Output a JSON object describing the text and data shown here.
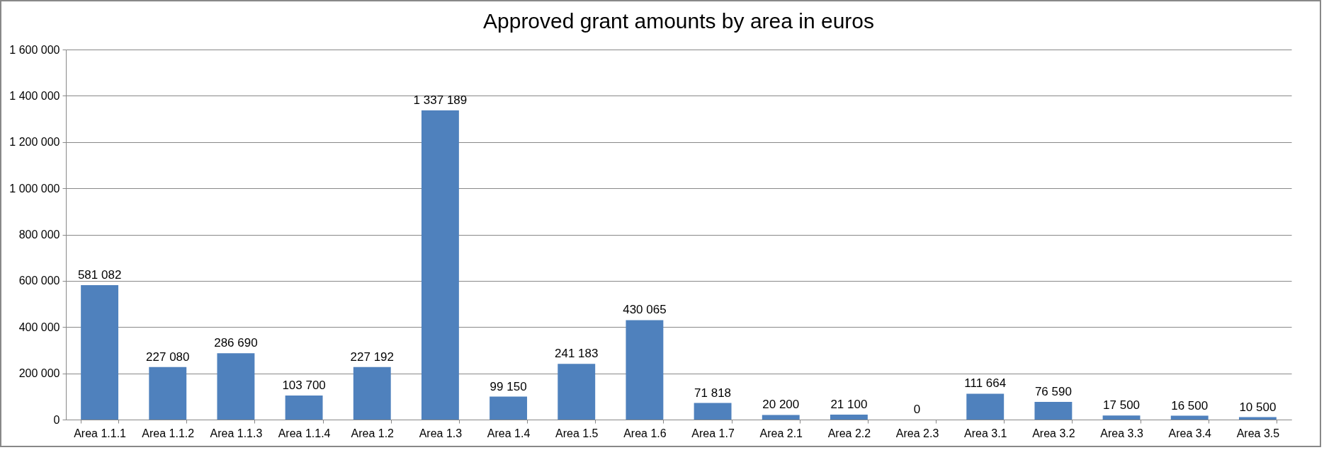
{
  "chart_data": {
    "type": "bar",
    "title": "Approved grant amounts by area in euros",
    "categories": [
      "Area 1.1.1",
      "Area 1.1.2",
      "Area 1.1.3",
      "Area 1.1.4",
      "Area 1.2",
      "Area 1.3",
      "Area 1.4",
      "Area 1.5",
      "Area 1.6",
      "Area 1.7",
      "Area 2.1",
      "Area 2.2",
      "Area 2.3",
      "Area 3.1",
      "Area 3.2",
      "Area 3.3",
      "Area 3.4",
      "Area 3.5"
    ],
    "values": [
      581082,
      227080,
      286690,
      103700,
      227192,
      1337189,
      99150,
      241183,
      430065,
      71818,
      20200,
      21100,
      0,
      111664,
      76590,
      17500,
      16500,
      10500
    ],
    "value_labels": [
      "581 082",
      "227 080",
      "286 690",
      "103 700",
      "227 192",
      "1 337 189",
      "99 150",
      "241 183",
      "430 065",
      "71 818",
      "20 200",
      "21 100",
      "0",
      "111 664",
      "76 590",
      "17 500",
      "16 500",
      "10 500"
    ],
    "color": "#4f81bd",
    "ylim": [
      0,
      1600000
    ],
    "yticks": [
      {
        "value": 0,
        "label": "0"
      },
      {
        "value": 200000,
        "label": "200 000"
      },
      {
        "value": 400000,
        "label": "400 000"
      },
      {
        "value": 600000,
        "label": "600 000"
      },
      {
        "value": 800000,
        "label": "800 000"
      },
      {
        "value": 1000000,
        "label": "1 000 000"
      },
      {
        "value": 1200000,
        "label": "1 200 000"
      },
      {
        "value": 1400000,
        "label": "1 400 000"
      },
      {
        "value": 1600000,
        "label": "1 600 000"
      }
    ],
    "grid": "y"
  }
}
